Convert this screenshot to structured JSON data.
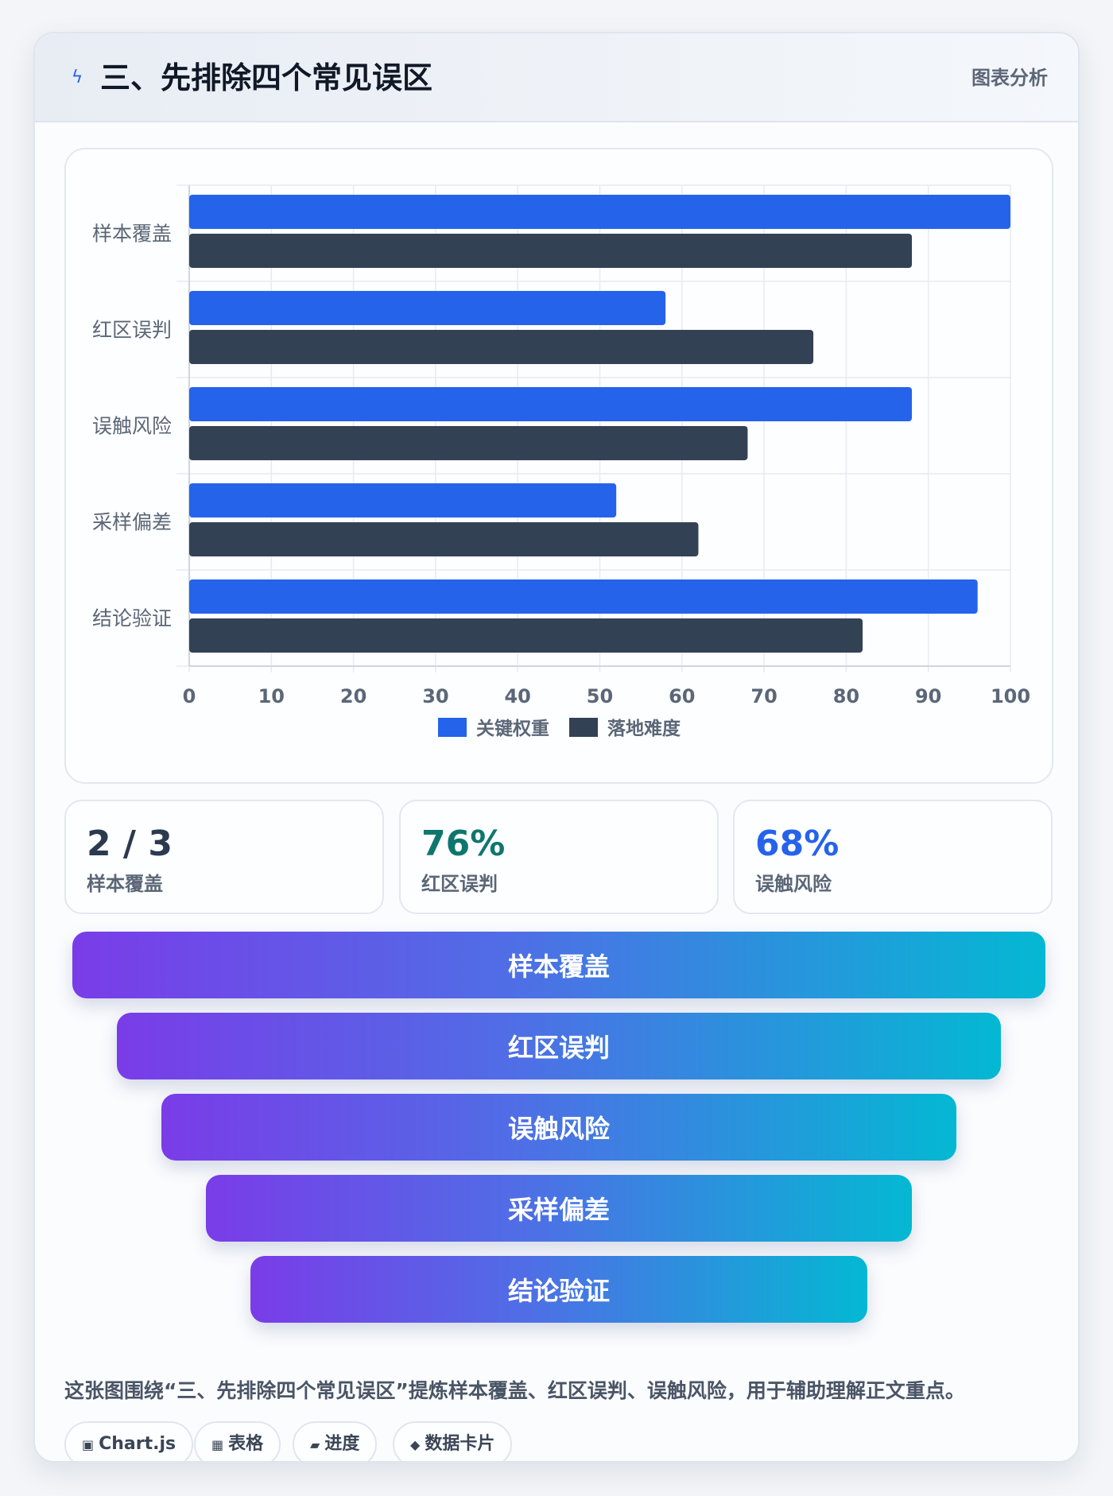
{
  "header": {
    "icon": "lightning-icon",
    "title": "三、先排除四个常见误区",
    "tag": "图表分析"
  },
  "chart_data": {
    "type": "bar",
    "orientation": "horizontal",
    "categories": [
      "样本覆盖",
      "红区误判",
      "误触风险",
      "采样偏差",
      "结论验证"
    ],
    "series": [
      {
        "name": "关键权重",
        "color": "#2563eb",
        "values": [
          100,
          58,
          88,
          52,
          96
        ]
      },
      {
        "name": "落地难度",
        "color": "#334155",
        "values": [
          88,
          76,
          68,
          62,
          82
        ]
      }
    ],
    "xlim": [
      0,
      100
    ],
    "xticks": [
      0,
      10,
      20,
      30,
      40,
      50,
      60,
      70,
      80,
      90,
      100
    ],
    "grid": true,
    "legend_position": "bottom"
  },
  "stats": [
    {
      "value": "2 / 3",
      "label": "样本覆盖",
      "color": "#2c3a4f"
    },
    {
      "value": "76%",
      "label": "红区误判",
      "color": "#0f766e"
    },
    {
      "value": "68%",
      "label": "误触风险",
      "color": "#2563eb"
    }
  ],
  "funnel": [
    "样本覆盖",
    "红区误判",
    "误触风险",
    "采样偏差",
    "结论验证"
  ],
  "caption": "这张图围绕“三、先排除四个常见误区”提炼样本覆盖、红区误判、误触风险，用于辅助理解正文重点。",
  "chips": [
    {
      "icon": "chart-icon",
      "glyph": "▣",
      "label": "Chart.js"
    },
    {
      "icon": "table-icon",
      "glyph": "▦",
      "label": "表格"
    },
    {
      "icon": "progress-icon",
      "glyph": "▰",
      "label": "进度"
    },
    {
      "icon": "data-card-icon",
      "glyph": "◆",
      "label": "数据卡片"
    }
  ]
}
